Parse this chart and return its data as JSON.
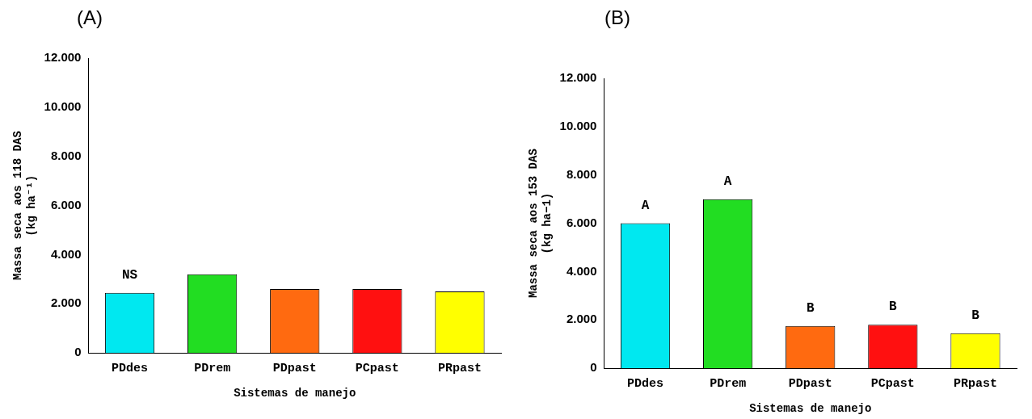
{
  "chart_data": [
    {
      "type": "bar",
      "title": "(A)",
      "xlabel": "Sistemas de manejo",
      "ylabel": "Massa seca aos 118 DAS\n(kg ha⁻¹)",
      "categories": [
        "PDdes",
        "PDrem",
        "PDpast",
        "PCpast",
        "PRpast"
      ],
      "values": [
        2450,
        3200,
        2600,
        2600,
        2500
      ],
      "colors": [
        "#00e8f0",
        "#22dd22",
        "#ff6a10",
        "#ff1010",
        "#ffff00"
      ],
      "ylim": [
        0,
        12000
      ],
      "yticks": [
        {
          "value": 0,
          "label": "0"
        },
        {
          "value": 2000,
          "label": "2.000"
        },
        {
          "value": 4000,
          "label": "4.000"
        },
        {
          "value": 6000,
          "label": "6.000"
        },
        {
          "value": 8000,
          "label": "8.000"
        },
        {
          "value": 10000,
          "label": "10.000"
        },
        {
          "value": 12000,
          "label": "12.000"
        }
      ],
      "annotations": [
        {
          "text": "NS",
          "x": "PDdes",
          "y": 2450
        }
      ]
    },
    {
      "type": "bar",
      "title": "(B)",
      "xlabel": "Sistemas de manejo",
      "ylabel": "Massa seca aos 153 DAS\n(kg ha−1)",
      "categories": [
        "PDdes",
        "PDrem",
        "PDpast",
        "PCpast",
        "PRpast"
      ],
      "values": [
        6000,
        7000,
        1750,
        1800,
        1450
      ],
      "colors": [
        "#00e8f0",
        "#22dd22",
        "#ff6a10",
        "#ff1010",
        "#ffff00"
      ],
      "ylim": [
        0,
        12000
      ],
      "yticks": [
        {
          "value": 0,
          "label": "0"
        },
        {
          "value": 2000,
          "label": "2.000"
        },
        {
          "value": 4000,
          "label": "4.000"
        },
        {
          "value": 6000,
          "label": "6.000"
        },
        {
          "value": 8000,
          "label": "8.000"
        },
        {
          "value": 10000,
          "label": "10.000"
        },
        {
          "value": 12000,
          "label": "12.000"
        }
      ],
      "annotations": [
        {
          "text": "A",
          "x": "PDdes",
          "y": 6000
        },
        {
          "text": "A",
          "x": "PDrem",
          "y": 7000
        },
        {
          "text": "B",
          "x": "PDpast",
          "y": 1750
        },
        {
          "text": "B",
          "x": "PCpast",
          "y": 1800
        },
        {
          "text": "B",
          "x": "PRpast",
          "y": 1450
        }
      ]
    }
  ]
}
